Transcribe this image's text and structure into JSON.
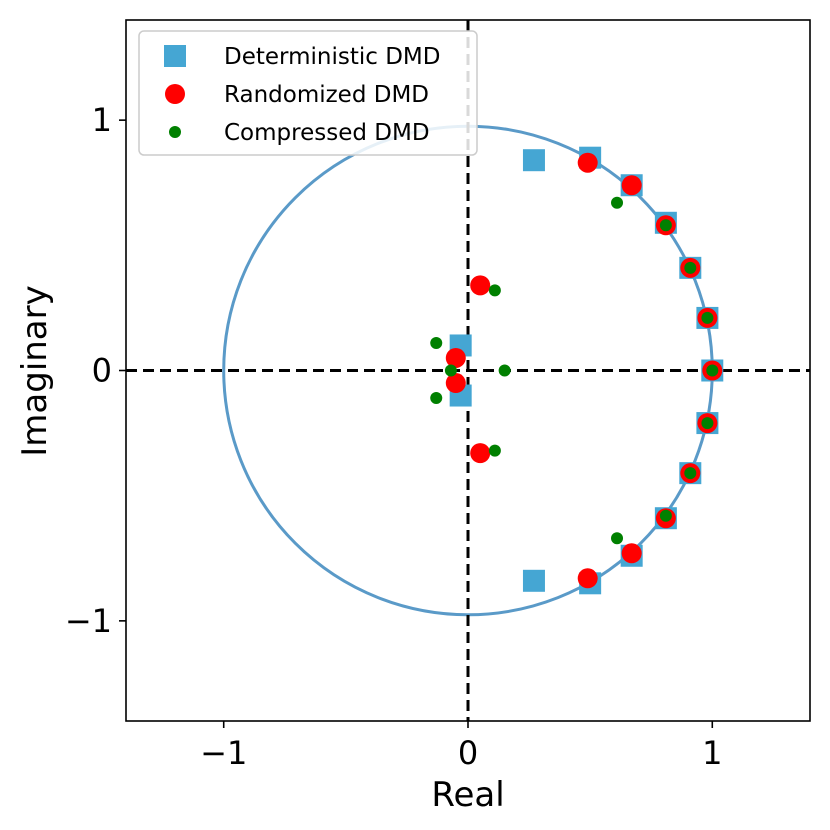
{
  "chart_data": {
    "type": "scatter",
    "title": "",
    "xlabel": "Real",
    "ylabel": "Imaginary",
    "xlim": [
      -1.4,
      1.4
    ],
    "ylim": [
      -1.4,
      1.4
    ],
    "xticks": [
      {
        "value": -1,
        "label": "−1"
      },
      {
        "value": 0,
        "label": "0"
      },
      {
        "value": 1,
        "label": "1"
      }
    ],
    "yticks": [
      {
        "value": -1,
        "label": "−1"
      },
      {
        "value": 0,
        "label": "0"
      },
      {
        "value": 1,
        "label": "1"
      }
    ],
    "grid": false,
    "legend_position": "top-left",
    "unit_circle": {
      "radius": 1,
      "color": "#5a9ac8"
    },
    "reference_lines": {
      "x": 0,
      "y": 0,
      "style": "dashed",
      "color": "#000000"
    },
    "series": [
      {
        "name": "Deterministic DMD",
        "marker": "square",
        "color": "#45a6d3",
        "points": [
          [
            0.27,
            0.84
          ],
          [
            0.5,
            0.85
          ],
          [
            0.67,
            0.74
          ],
          [
            0.81,
            0.59
          ],
          [
            0.91,
            0.41
          ],
          [
            0.98,
            0.21
          ],
          [
            1.0,
            0.0
          ],
          [
            0.98,
            -0.21
          ],
          [
            0.91,
            -0.41
          ],
          [
            0.81,
            -0.59
          ],
          [
            0.67,
            -0.74
          ],
          [
            0.5,
            -0.85
          ],
          [
            0.27,
            -0.84
          ],
          [
            -0.03,
            0.1
          ],
          [
            -0.03,
            -0.1
          ]
        ]
      },
      {
        "name": "Randomized DMD",
        "marker": "circle",
        "color": "#ff0000",
        "points": [
          [
            0.49,
            0.83
          ],
          [
            0.67,
            0.74
          ],
          [
            0.81,
            0.58
          ],
          [
            0.91,
            0.41
          ],
          [
            0.98,
            0.21
          ],
          [
            1.0,
            0.0
          ],
          [
            0.98,
            -0.21
          ],
          [
            0.91,
            -0.41
          ],
          [
            0.81,
            -0.59
          ],
          [
            0.67,
            -0.73
          ],
          [
            0.49,
            -0.83
          ],
          [
            0.05,
            0.34
          ],
          [
            0.05,
            -0.33
          ],
          [
            -0.05,
            0.05
          ],
          [
            -0.05,
            -0.05
          ]
        ]
      },
      {
        "name": "Compressed DMD",
        "marker": "circle-small",
        "color": "#008000",
        "points": [
          [
            0.61,
            0.67
          ],
          [
            0.81,
            0.58
          ],
          [
            0.91,
            0.41
          ],
          [
            0.98,
            0.21
          ],
          [
            1.0,
            0.0
          ],
          [
            0.98,
            -0.21
          ],
          [
            0.91,
            -0.41
          ],
          [
            0.81,
            -0.58
          ],
          [
            0.61,
            -0.67
          ],
          [
            0.11,
            0.32
          ],
          [
            0.11,
            -0.32
          ],
          [
            0.15,
            0.0
          ],
          [
            -0.13,
            0.11
          ],
          [
            -0.13,
            -0.11
          ],
          [
            -0.07,
            0.0
          ]
        ]
      }
    ]
  }
}
